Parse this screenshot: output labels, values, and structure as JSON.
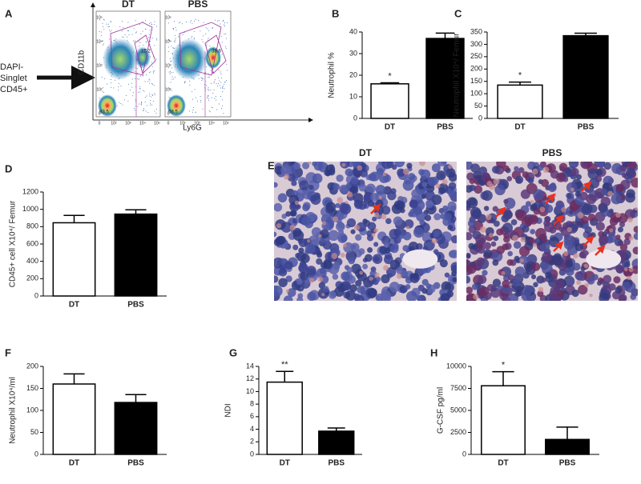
{
  "chart_data": [
    {
      "type": "bar",
      "panel": "B",
      "y_label": "Neutrophil %",
      "categories": [
        "DT",
        "PBS"
      ],
      "values": [
        16,
        37
      ],
      "errors": [
        0.5,
        2.5
      ],
      "significance": [
        "*",
        null
      ],
      "colors": [
        "#ffffff",
        "#000000"
      ],
      "ylim": [
        0,
        40
      ],
      "yticks": [
        0,
        10,
        20,
        30,
        40
      ]
    },
    {
      "type": "bar",
      "panel": "C",
      "y_label": "Neutrophil X10⁴/ Femur",
      "categories": [
        "DT",
        "PBS"
      ],
      "values": [
        135,
        335
      ],
      "errors": [
        12,
        10
      ],
      "significance": [
        "*",
        null
      ],
      "colors": [
        "#ffffff",
        "#000000"
      ],
      "ylim": [
        0,
        350
      ],
      "yticks": [
        0,
        50,
        100,
        150,
        200,
        250,
        300,
        350
      ]
    },
    {
      "type": "bar",
      "panel": "D",
      "y_label": "CD45+ cell X10⁴/ Femur",
      "categories": [
        "DT",
        "PBS"
      ],
      "values": [
        845,
        945
      ],
      "errors": [
        85,
        50
      ],
      "significance": [
        null,
        null
      ],
      "colors": [
        "#ffffff",
        "#000000"
      ],
      "ylim": [
        0,
        1200
      ],
      "yticks": [
        0,
        200,
        400,
        600,
        800,
        1000,
        1200
      ]
    },
    {
      "type": "bar",
      "panel": "F",
      "y_label": "Neutrophil X10⁴/ml",
      "categories": [
        "DT",
        "PBS"
      ],
      "values": [
        160,
        118
      ],
      "errors": [
        23,
        18
      ],
      "significance": [
        null,
        null
      ],
      "colors": [
        "#ffffff",
        "#000000"
      ],
      "ylim": [
        0,
        200
      ],
      "yticks": [
        0,
        50,
        100,
        150,
        200
      ]
    },
    {
      "type": "bar",
      "panel": "G",
      "y_label": "NDI",
      "categories": [
        "DT",
        "PBS"
      ],
      "values": [
        11.5,
        3.7
      ],
      "errors": [
        1.7,
        0.5
      ],
      "significance": [
        "**",
        null
      ],
      "colors": [
        "#ffffff",
        "#000000"
      ],
      "ylim": [
        0,
        14
      ],
      "yticks": [
        0,
        2,
        4,
        6,
        8,
        10,
        12,
        14
      ]
    },
    {
      "type": "bar",
      "panel": "H",
      "y_label": "G-CSF pg/ml",
      "categories": [
        "DT",
        "PBS"
      ],
      "values": [
        7800,
        1700
      ],
      "errors": [
        1600,
        1400
      ],
      "significance": [
        "*",
        null
      ],
      "colors": [
        "#ffffff",
        "#000000"
      ],
      "ylim": [
        0,
        10000
      ],
      "yticks": [
        0,
        2500,
        5000,
        7500,
        10000
      ]
    }
  ],
  "panel_a": {
    "letter": "A",
    "gating_label": [
      "DAPI-",
      "Singlet",
      "CD45+"
    ],
    "y_label": "CD11b",
    "x_label": "Ly6G",
    "axis_ticks": [
      "0",
      "10²",
      "10³",
      "10⁴",
      "10⁵"
    ],
    "plots": [
      {
        "title": "DT",
        "gates": [
          "15.2",
          "83.5"
        ]
      },
      {
        "title": "PBS",
        "gates": [
          "38.8",
          "58.5"
        ]
      }
    ]
  },
  "panel_e": {
    "letter": "E",
    "images": [
      {
        "title": "DT"
      },
      {
        "title": "PBS"
      }
    ]
  }
}
